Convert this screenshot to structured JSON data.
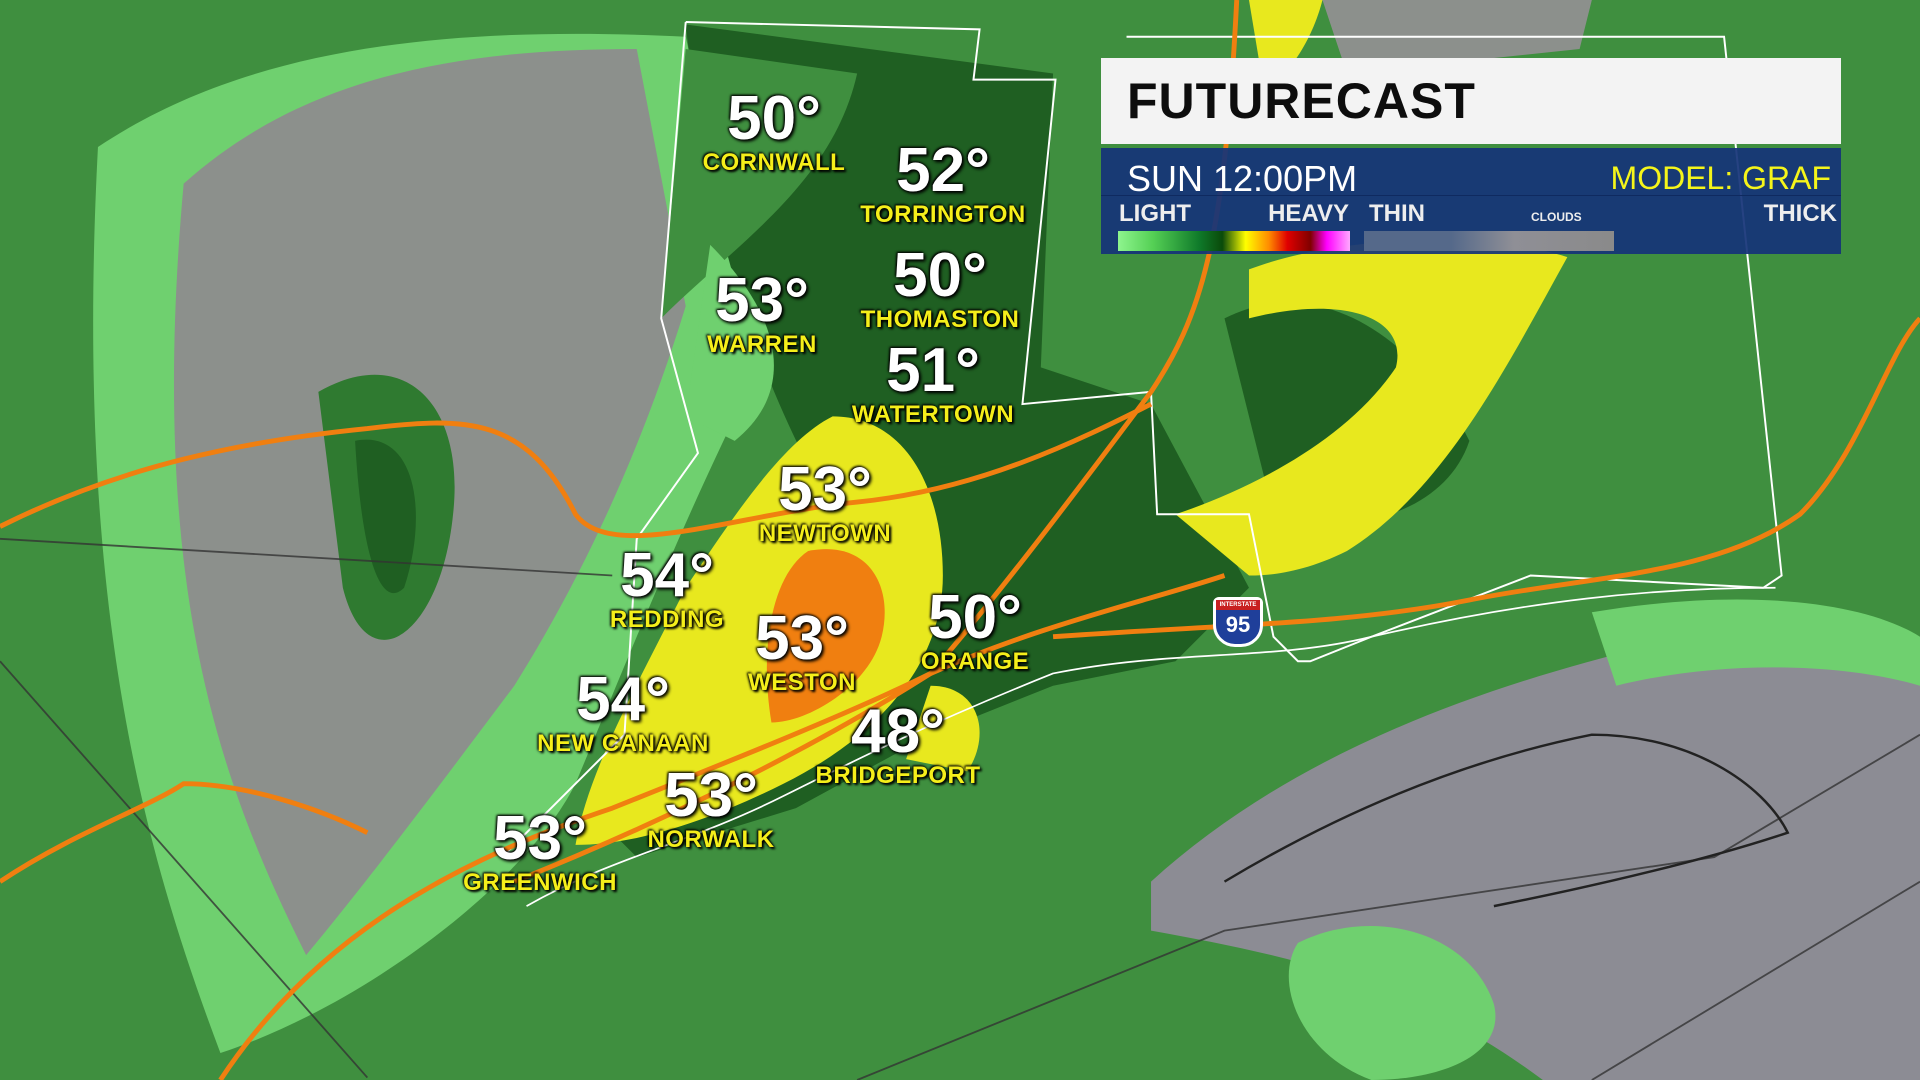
{
  "panel": {
    "title": "FUTURECAST",
    "time": "SUN  12:00PM",
    "model": "MODEL: GRAF",
    "legend": {
      "precip_low": "LIGHT",
      "precip_high": "HEAVY",
      "cloud_low": "THIN",
      "cloud_label": "CLOUDS",
      "cloud_high": "THICK"
    }
  },
  "shield": {
    "label": "95",
    "top_text": "INTERSTATE"
  },
  "cities": [
    {
      "temp": "50°",
      "name": "CORNWALL"
    },
    {
      "temp": "52°",
      "name": "TORRINGTON"
    },
    {
      "temp": "50°",
      "name": "THOMASTON"
    },
    {
      "temp": "53°",
      "name": "WARREN"
    },
    {
      "temp": "51°",
      "name": "WATERTOWN"
    },
    {
      "temp": "53°",
      "name": "NEWTOWN"
    },
    {
      "temp": "54°",
      "name": "REDDING"
    },
    {
      "temp": "53°",
      "name": "WESTON"
    },
    {
      "temp": "50°",
      "name": "ORANGE"
    },
    {
      "temp": "54°",
      "name": "NEW CANAAN"
    },
    {
      "temp": "48°",
      "name": "BRIDGEPORT"
    },
    {
      "temp": "53°",
      "name": "NORWALK"
    },
    {
      "temp": "53°",
      "name": "GREENWICH"
    }
  ],
  "colors": {
    "light": "#8ef58e",
    "medium": "#3f8f3f",
    "dark": "#1f5f22",
    "yellow": "#e8e81e",
    "orange": "#f07f10",
    "road": "#f07f10",
    "clouds": "#8a8a90"
  }
}
